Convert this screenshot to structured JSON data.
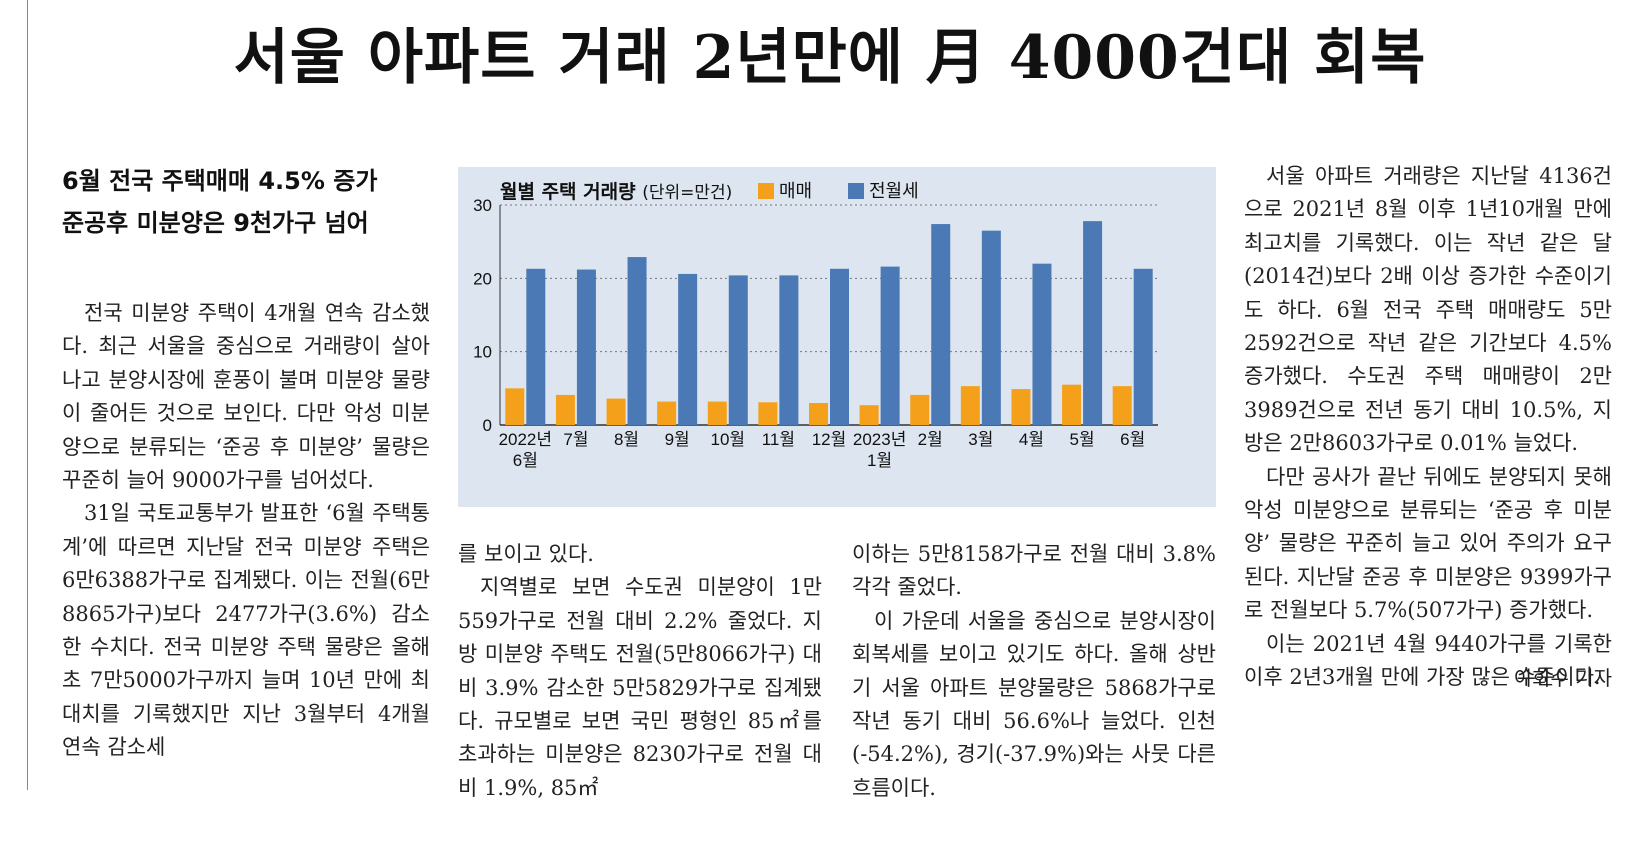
{
  "headline": "서울 아파트 거래 2년만에 月 4000건대 회복",
  "subhead": {
    "line1": "6월 전국 주택매매 4.5% 증가",
    "line2": "준공후 미분양은 9천가구 넘어"
  },
  "body": {
    "col1": [
      "전국 미분양 주택이 4개월 연속 감소했다. 최근 서울을 중심으로 거래량이 살아나고 분양시장에 훈풍이 불며 미분양 물량이 줄어든 것으로 보인다. 다만 악성 미분양으로 분류되는 ‘준공 후 미분양’ 물량은 꾸준히 늘어 9000가구를 넘어섰다.",
      "31일 국토교통부가 발표한 ‘6월 주택통계’에 따르면 지난달 전국 미분양 주택은 6만6388가구로 집계됐다. 이는 전월(6만8865가구)보다 2477가구(3.6%) 감소한 수치다. 전국 미분양 주택 물량은 올해 초 7만5000가구까지 늘며 10년 만에 최대치를 기록했지만 지난 3월부터 4개월 연속 감소세"
    ],
    "col2": [
      "를 보이고 있다.",
      "지역별로 보면 수도권 미분양이 1만559가구로 전월 대비 2.2% 줄었다. 지방 미분양 주택도 전월(5만8066가구) 대비 3.9% 감소한 5만5829가구로 집계됐다. 규모별로 보면 국민 평형인 85㎡를 초과하는 미분양은 8230가구로 전월 대비 1.9%, 85㎡"
    ],
    "col3": [
      "이하는 5만8158가구로 전월 대비 3.8% 각각 줄었다.",
      "이 가운데 서울을 중심으로 분양시장이 회복세를 보이고 있기도 하다. 올해 상반기 서울 아파트 분양물량은 5868가구로 작년 동기 대비 56.6%나 늘었다. 인천(-54.2%), 경기(-37.9%)와는 사뭇 다른 흐름이다."
    ],
    "col4": [
      "서울 아파트 거래량은 지난달 4136건으로 2021년 8월 이후 1년10개월 만에 최고치를 기록했다. 이는 작년 같은 달(2014건)보다 2배 이상 증가한 수준이기도 하다. 6월 전국 주택 매매량도 5만2592건으로 작년 같은 기간보다 4.5% 증가했다. 수도권 주택 매매량이 2만3989건으로 전년 동기 대비 10.5%, 지방은 2만8603가구로 0.01% 늘었다.",
      "다만 공사가 끝난 뒤에도 분양되지 못해 악성 미분양으로 분류되는 ‘준공 후 미분양’ 물량은 꾸준히 늘고 있어 주의가 요구된다. 지난달 준공 후 미분양은 9399가구로 전월보다 5.7%(507가구) 증가했다.",
      "이는 2021년 4월 9440가구를 기록한 이후 2년3개월 만에 가장 많은 수준이다."
    ],
    "byline": "이희수 기자"
  },
  "chart_data": {
    "type": "bar",
    "title": "월별 주택 거래량",
    "unit_note": "(단위=만건)",
    "categories": [
      [
        "2022년",
        "6월"
      ],
      [
        "7월"
      ],
      [
        "8월"
      ],
      [
        "9월"
      ],
      [
        "10월"
      ],
      [
        "11월"
      ],
      [
        "12월"
      ],
      [
        "2023년",
        "1월"
      ],
      [
        "2월"
      ],
      [
        "3월"
      ],
      [
        "4월"
      ],
      [
        "5월"
      ],
      [
        "6월"
      ]
    ],
    "series": [
      {
        "name": "매매",
        "color": "#f5a01a",
        "values": [
          5.0,
          4.1,
          3.6,
          3.2,
          3.2,
          3.1,
          3.0,
          2.7,
          4.1,
          5.3,
          4.9,
          5.5,
          5.3
        ]
      },
      {
        "name": "전월세",
        "color": "#4a79b5",
        "values": [
          21.3,
          21.2,
          22.9,
          20.6,
          20.4,
          20.4,
          21.3,
          21.6,
          27.4,
          26.5,
          22.0,
          27.8,
          21.3
        ]
      }
    ],
    "ylim": [
      0,
      30
    ],
    "yticks": [
      0,
      10,
      20,
      30
    ],
    "grid": "dotted horizontal",
    "legend": "top, inline after title"
  }
}
